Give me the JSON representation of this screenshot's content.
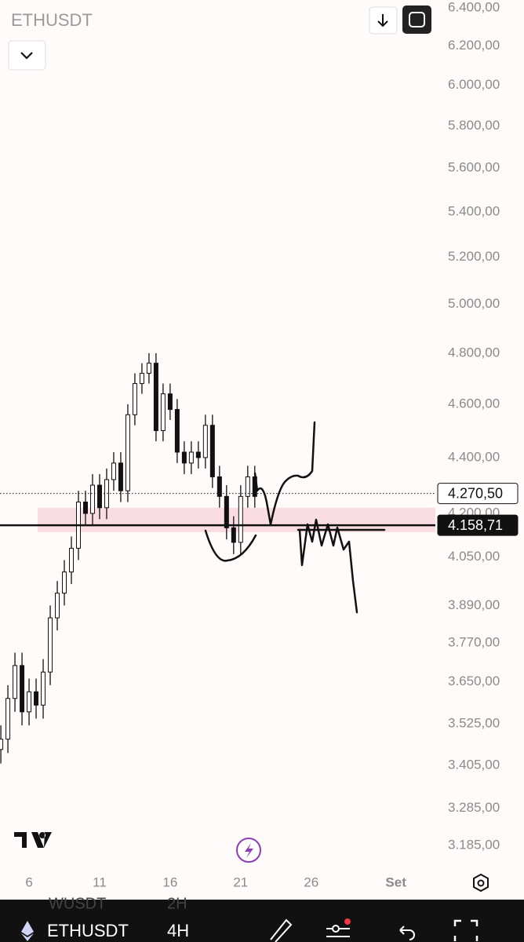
{
  "header": {
    "symbol": "ETHUSDT"
  },
  "chart_data": {
    "type": "candlestick",
    "log_scale": true,
    "color": "#111111",
    "x": [
      4,
      4.5,
      5,
      5.5,
      6,
      6.5,
      7,
      7.5,
      8,
      8.5,
      9,
      9.5,
      10,
      10.5,
      11,
      11.5,
      12,
      12.5,
      13,
      13.5,
      14,
      14.5,
      15,
      15.5,
      16,
      16.5,
      17,
      17.5,
      18,
      18.5,
      19,
      19.5,
      20,
      20.5,
      21,
      21.5,
      22
    ],
    "open": [
      3450,
      3480,
      3600,
      3700,
      3560,
      3620,
      3580,
      3680,
      3850,
      3930,
      4000,
      4080,
      4240,
      4200,
      4300,
      4220,
      4320,
      4380,
      4280,
      4560,
      4680,
      4720,
      4760,
      4500,
      4640,
      4580,
      4420,
      4380,
      4420,
      4400,
      4520,
      4330,
      4260,
      4150,
      4100,
      4260,
      4330
    ],
    "high": [
      3520,
      3640,
      3740,
      3740,
      3660,
      3660,
      3720,
      3890,
      3970,
      4040,
      4120,
      4280,
      4280,
      4340,
      4340,
      4360,
      4420,
      4420,
      4600,
      4720,
      4760,
      4800,
      4800,
      4680,
      4680,
      4620,
      4460,
      4460,
      4460,
      4560,
      4560,
      4370,
      4300,
      4190,
      4300,
      4370,
      4370
    ],
    "low": [
      3410,
      3440,
      3560,
      3520,
      3520,
      3540,
      3540,
      3640,
      3810,
      3890,
      3960,
      4040,
      4160,
      4160,
      4180,
      4180,
      4280,
      4240,
      4240,
      4520,
      4640,
      4680,
      4460,
      4460,
      4540,
      4380,
      4340,
      4340,
      4360,
      4360,
      4290,
      4220,
      4110,
      4060,
      4060,
      4220,
      4220
    ],
    "close": [
      3480,
      3600,
      3700,
      3560,
      3620,
      3580,
      3680,
      3850,
      3930,
      4000,
      4080,
      4240,
      4200,
      4300,
      4220,
      4320,
      4380,
      4280,
      4560,
      4680,
      4720,
      4760,
      4500,
      4640,
      4580,
      4420,
      4380,
      4420,
      4400,
      4520,
      4330,
      4260,
      4150,
      4100,
      4260,
      4330,
      4260
    ],
    "xlim": [
      3.94,
      34.8
    ],
    "xticks": [
      6,
      11,
      16,
      21,
      26,
      {
        "value": 32,
        "label": "Set"
      }
    ],
    "ylim": [
      3117,
      6442
    ],
    "yticks": [
      {
        "value": 6400,
        "label": "6.400,00"
      },
      {
        "value": 6200,
        "label": "6.200,00"
      },
      {
        "value": 6000,
        "label": "6.000,00"
      },
      {
        "value": 5800,
        "label": "5.800,00"
      },
      {
        "value": 5600,
        "label": "5.600,00"
      },
      {
        "value": 5400,
        "label": "5.400,00"
      },
      {
        "value": 5200,
        "label": "5.200,00"
      },
      {
        "value": 5000,
        "label": "5.000,00"
      },
      {
        "value": 4800,
        "label": "4.800,00"
      },
      {
        "value": 4600,
        "label": "4.600,00"
      },
      {
        "value": 4400,
        "label": "4.400,00"
      },
      {
        "value": 4200,
        "label": "4.200,00"
      },
      {
        "value": 4050,
        "label": "4.050,00"
      },
      {
        "value": 3890,
        "label": "3.890,00"
      },
      {
        "value": 3770,
        "label": "3.770,00"
      },
      {
        "value": 3650,
        "label": "3.650,00"
      },
      {
        "value": 3525,
        "label": "3.525,00"
      },
      {
        "value": 3405,
        "label": "3.405,00"
      },
      {
        "value": 3285,
        "label": "3.285,00"
      },
      {
        "value": 3185,
        "label": "3.185,00"
      }
    ],
    "zone": [
      4135,
      4220
    ],
    "price_lines": [
      {
        "value": 4270.5,
        "label": "4.270,50"
      },
      {
        "value": 4158.71,
        "label": "4.158,71"
      }
    ]
  },
  "toolbar": {
    "ghost_symbol": "WUSDT",
    "ghost_interval": "2H",
    "symbol": "ETHUSDT",
    "interval": "4H"
  }
}
